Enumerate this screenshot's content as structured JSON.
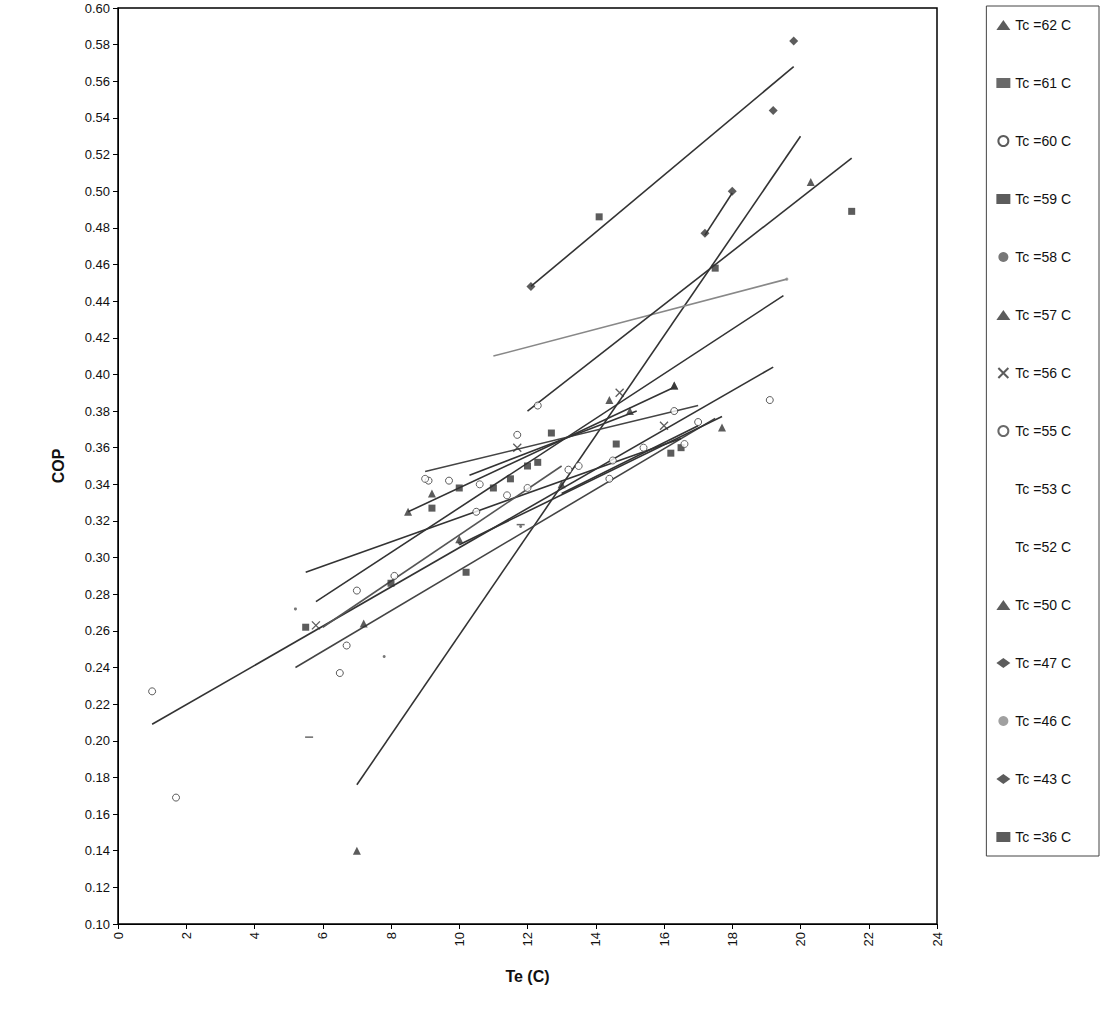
{
  "chart_data": {
    "type": "scatter",
    "x_label": "Te (C)",
    "y_label": "COP",
    "xlim": [
      0,
      24
    ],
    "xticks": [
      0,
      2,
      4,
      6,
      8,
      10,
      12,
      14,
      16,
      18,
      20,
      22,
      24
    ],
    "ylim": [
      0.1,
      0.6
    ],
    "yticks": [
      {
        "value": 0.1,
        "label": "0.10"
      },
      {
        "value": 0.12,
        "label": "0.12"
      },
      {
        "value": 0.14,
        "label": "0.14"
      },
      {
        "value": 0.16,
        "label": "0.16"
      },
      {
        "value": 0.18,
        "label": "0.18"
      },
      {
        "value": 0.2,
        "label": "0.20"
      },
      {
        "value": 0.22,
        "label": "0.22"
      },
      {
        "value": 0.24,
        "label": "0.24"
      },
      {
        "value": 0.26,
        "label": "0.26"
      },
      {
        "value": 0.28,
        "label": "0.28"
      },
      {
        "value": 0.3,
        "label": "0.30"
      },
      {
        "value": 0.32,
        "label": "0.32"
      },
      {
        "value": 0.34,
        "label": "0.34"
      },
      {
        "value": 0.36,
        "label": "0.36"
      },
      {
        "value": 0.38,
        "label": "0.38"
      },
      {
        "value": 0.4,
        "label": "0.40"
      },
      {
        "value": 0.42,
        "label": "0.42"
      },
      {
        "value": 0.44,
        "label": "0.44"
      },
      {
        "value": 0.46,
        "label": "0.46"
      },
      {
        "value": 0.48,
        "label": "0.48"
      },
      {
        "value": 0.5,
        "label": "0.50"
      },
      {
        "value": 0.52,
        "label": "0.52"
      },
      {
        "value": 0.54,
        "label": "0.54"
      },
      {
        "value": 0.56,
        "label": "0.56"
      },
      {
        "value": 0.58,
        "label": "0.58"
      },
      {
        "value": 0.6,
        "label": "0.60"
      }
    ],
    "grid": false,
    "legend": "right",
    "series": [
      {
        "name": "Tc =62 C",
        "color": "#333333",
        "marker": "triangle",
        "x": [
          7.0,
          16.3,
          20.3
        ],
        "values": [
          0.14,
          0.394,
          0.505
        ],
        "fit_x": [
          7.0,
          20.0
        ],
        "fit_y": [
          0.176,
          0.53
        ]
      },
      {
        "name": "Tc =61 C",
        "color": "#444444",
        "marker": "dash",
        "x": [
          5.6,
          11.8
        ],
        "values": [
          0.202,
          0.318
        ],
        "fit_x": [
          5.2,
          17.5
        ],
        "fit_y": [
          0.24,
          0.376
        ]
      },
      {
        "name": "Tc =60 C",
        "color": "#333333",
        "marker": "circle_open",
        "x": [
          1.0,
          1.7,
          6.5,
          6.7,
          7.0,
          8.1,
          9.1,
          9.7,
          10.5,
          11.7,
          12.3,
          13.2,
          14.4,
          16.3,
          17.0,
          19.1
        ],
        "values": [
          0.227,
          0.169,
          0.237,
          0.252,
          0.282,
          0.29,
          0.342,
          0.342,
          0.325,
          0.367,
          0.383,
          0.348,
          0.343,
          0.38,
          0.374,
          0.386
        ],
        "fit_x": [
          1.0,
          19.2
        ],
        "fit_y": [
          0.209,
          0.404
        ]
      },
      {
        "name": "Tc =59 C",
        "color": "#333333",
        "marker": "square",
        "x": [
          5.5,
          8.0,
          9.2,
          10.0,
          10.2,
          11.0,
          11.5,
          12.3,
          12.7,
          14.1,
          14.6,
          16.2,
          16.5,
          21.5
        ],
        "values": [
          0.262,
          0.286,
          0.327,
          0.338,
          0.292,
          0.338,
          0.343,
          0.352,
          0.368,
          0.486,
          0.362,
          0.357,
          0.36,
          0.489
        ],
        "fit_x": [
          5.5,
          16.5
        ],
        "fit_y": [
          0.292,
          0.365
        ]
      },
      {
        "name": "Tc =58 C",
        "color": "#555555",
        "marker": "dot",
        "x": [
          5.2,
          7.8,
          10.0,
          11.8
        ],
        "values": [
          0.272,
          0.246,
          0.308,
          0.317
        ],
        "fit_x": [
          6.0,
          13.0
        ],
        "fit_y": [
          0.262,
          0.35
        ]
      },
      {
        "name": "Tc =57 C",
        "color": "#333333",
        "marker": "triangle",
        "x": [
          8.5,
          9.2,
          14.4,
          15.0,
          16.3
        ],
        "values": [
          0.325,
          0.335,
          0.386,
          0.38,
          0.394
        ],
        "fit_x": [
          8.5,
          16.3
        ],
        "fit_y": [
          0.325,
          0.393
        ]
      },
      {
        "name": "Tc =56 C",
        "color": "#333333",
        "marker": "x",
        "x": [
          5.8,
          11.7,
          14.7,
          16.0
        ],
        "values": [
          0.263,
          0.36,
          0.39,
          0.372
        ],
        "fit_x": [
          5.8,
          19.5
        ],
        "fit_y": [
          0.276,
          0.443
        ]
      },
      {
        "name": "Tc =55 C",
        "color": "#444444",
        "marker": "circle_open",
        "x": [
          9.0,
          10.6,
          11.4,
          12.0,
          13.5,
          14.5,
          15.4,
          16.6
        ],
        "values": [
          0.343,
          0.34,
          0.334,
          0.338,
          0.35,
          0.353,
          0.36,
          0.362
        ],
        "fit_x": [
          9.0,
          17.0
        ],
        "fit_y": [
          0.347,
          0.383
        ]
      },
      {
        "name": "Tc =53 C",
        "color": "#333333",
        "marker": "none",
        "fit_x": [
          10.3,
          15.2
        ],
        "fit_y": [
          0.345,
          0.38
        ]
      },
      {
        "name": "Tc =52 C",
        "color": "#333333",
        "marker": "none",
        "fit_x": [
          13.0,
          17.0
        ],
        "fit_y": [
          0.335,
          0.372
        ]
      },
      {
        "name": "Tc =50 C",
        "color": "#333333",
        "marker": "triangle",
        "x": [
          7.2,
          10.0,
          13.0,
          17.7
        ],
        "values": [
          0.264,
          0.31,
          0.34,
          0.371
        ],
        "fit_x": [
          10.0,
          17.7
        ],
        "fit_y": [
          0.307,
          0.377
        ]
      },
      {
        "name": "Tc =47 C",
        "color": "#333333",
        "marker": "diamond",
        "x": [
          17.2,
          18.0
        ],
        "values": [
          0.477,
          0.5
        ],
        "fit_x": [
          17.2,
          18.0
        ],
        "fit_y": [
          0.476,
          0.499
        ]
      },
      {
        "name": "Tc =46 C",
        "color": "#888888",
        "marker": "dot",
        "x": [
          19.6
        ],
        "values": [
          0.452
        ],
        "fit_x": [
          11.0,
          19.6
        ],
        "fit_y": [
          0.41,
          0.452
        ]
      },
      {
        "name": "Tc =43 C",
        "color": "#333333",
        "marker": "diamond",
        "x": [
          12.1,
          19.2,
          19.8
        ],
        "values": [
          0.448,
          0.544,
          0.582
        ],
        "fit_x": [
          12.1,
          19.8
        ],
        "fit_y": [
          0.448,
          0.568
        ]
      },
      {
        "name": "Tc =36 C",
        "color": "#333333",
        "marker": "square",
        "x": [
          12.0,
          17.5
        ],
        "values": [
          0.35,
          0.458
        ],
        "fit_x": [
          12.0,
          21.5
        ],
        "fit_y": [
          0.38,
          0.518
        ]
      }
    ]
  }
}
